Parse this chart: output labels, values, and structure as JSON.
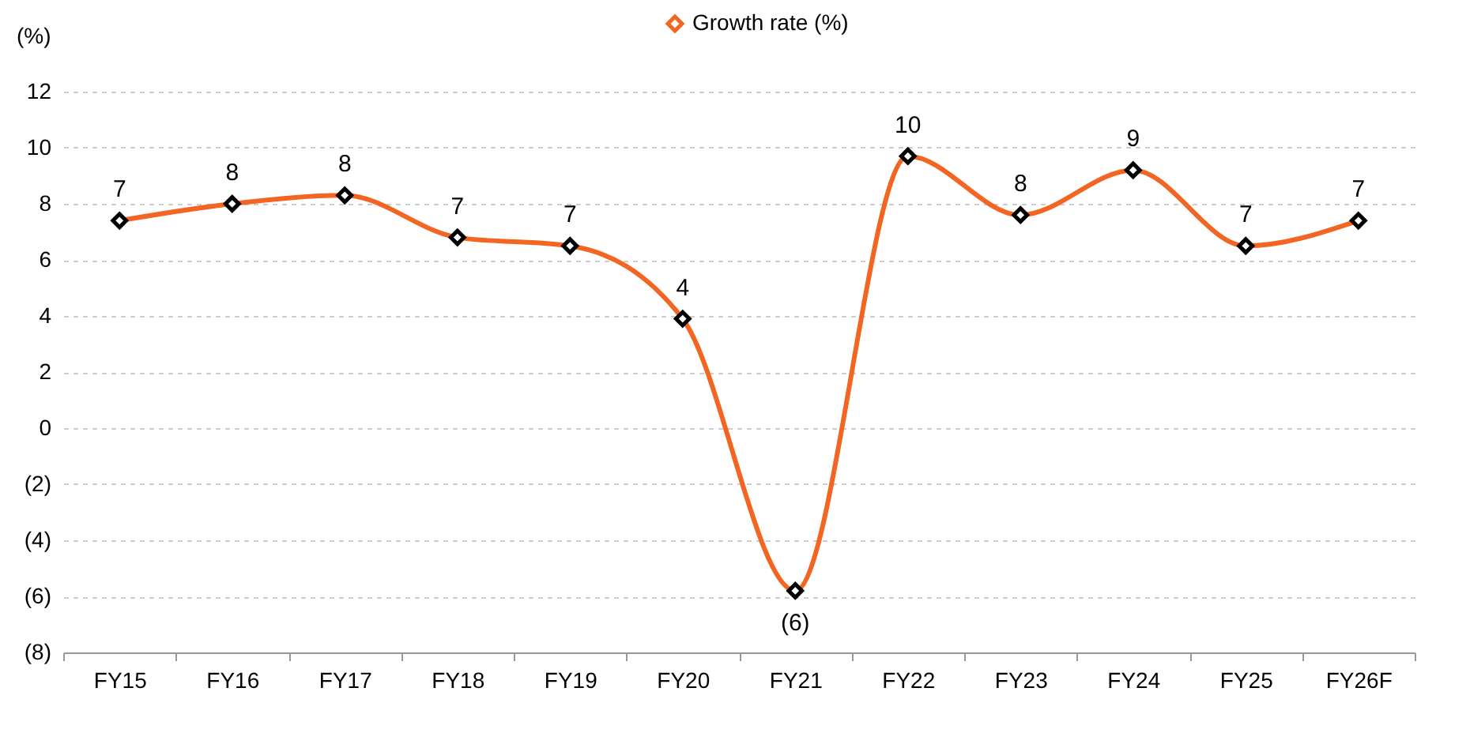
{
  "chart_data": {
    "type": "line",
    "ylabel": "(%)",
    "categories": [
      "FY15",
      "FY16",
      "FY17",
      "FY18",
      "FY19",
      "FY20",
      "FY21",
      "FY22",
      "FY23",
      "FY24",
      "FY25",
      "FY26F"
    ],
    "series": [
      {
        "name": "Growth rate (%)",
        "color": "#f26522",
        "values": [
          7.4,
          8.0,
          8.3,
          6.8,
          6.5,
          3.9,
          -5.8,
          9.7,
          7.6,
          9.2,
          6.5,
          7.4
        ],
        "value_labels": [
          "7",
          "8",
          "8",
          "7",
          "7",
          "4",
          "(6)",
          "10",
          "8",
          "9",
          "7",
          "7"
        ]
      }
    ],
    "ylim": [
      -8,
      12
    ],
    "yticks": [
      {
        "value": -8,
        "label": "(8)"
      },
      {
        "value": -6,
        "label": "(6)"
      },
      {
        "value": -4,
        "label": "(4)"
      },
      {
        "value": -2,
        "label": "(2)"
      },
      0,
      2,
      4,
      6,
      8,
      10,
      12
    ],
    "grid": "y",
    "legend": "top",
    "marker": "diamond",
    "line_style": "solid"
  }
}
